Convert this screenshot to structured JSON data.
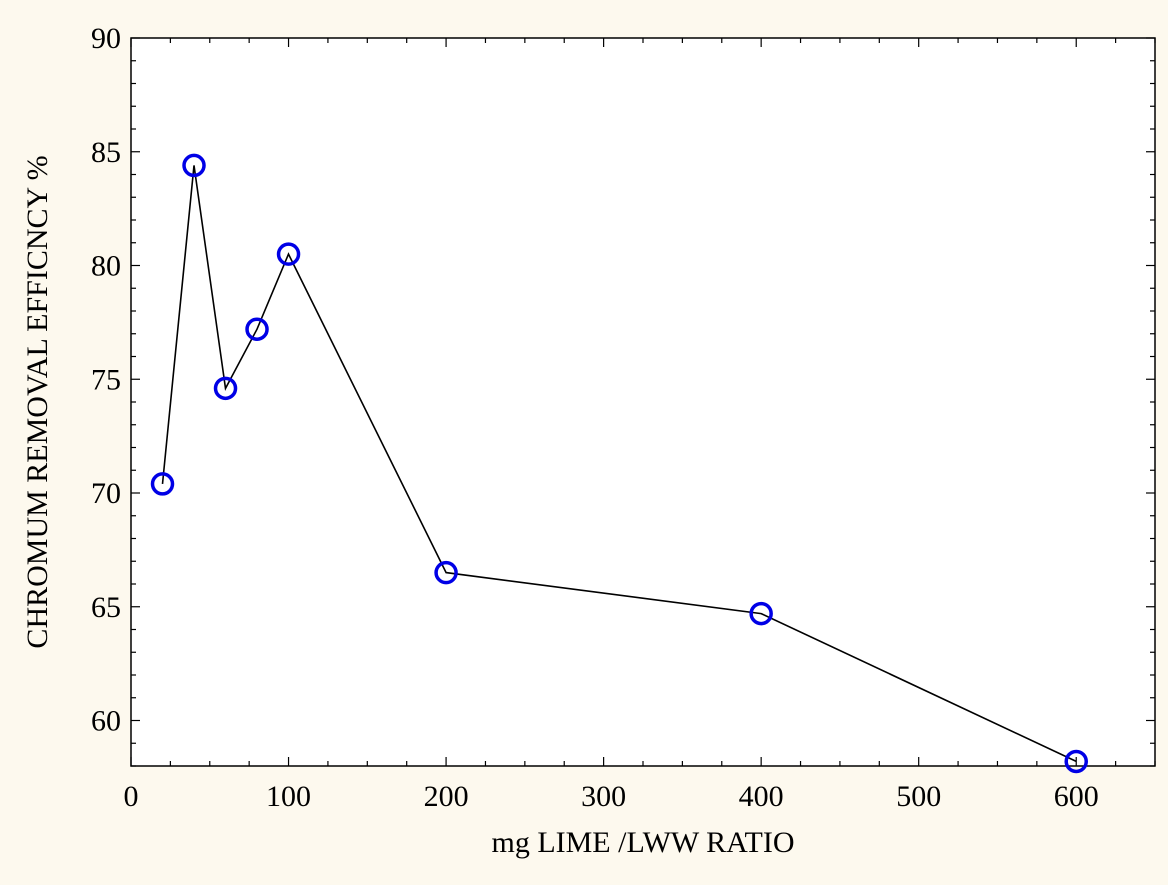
{
  "chart_data": {
    "type": "line",
    "title": "",
    "xlabel": "mg LIME /LWW RATIO",
    "ylabel": "CHROMUM REMOVAL EFFICNCY %",
    "xlim": [
      0,
      650
    ],
    "ylim": [
      58,
      90
    ],
    "xticks": [
      0,
      100,
      200,
      300,
      400,
      500,
      600
    ],
    "yticks": [
      60,
      65,
      70,
      75,
      80,
      85,
      90
    ],
    "grid": false,
    "legend": "none",
    "series": [
      {
        "x": [
          20,
          40,
          60,
          80,
          100,
          200,
          400,
          600
        ],
        "y": [
          70.4,
          84.4,
          74.6,
          77.2,
          80.5,
          66.5,
          64.7,
          58.2
        ]
      }
    ],
    "colors": {
      "background": "#fdf9ee",
      "plot_area": "#ffffff",
      "line": "#000000",
      "marker": "#0000e6"
    }
  }
}
